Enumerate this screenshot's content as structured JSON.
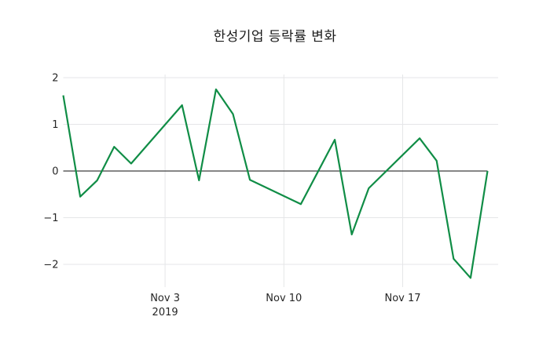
{
  "chart_data": {
    "type": "line",
    "title": "한성기업 등락률 변화",
    "xlabel": "",
    "ylabel": "",
    "x": [
      "2019-10-28",
      "2019-10-29",
      "2019-10-30",
      "2019-10-31",
      "2019-11-01",
      "2019-11-04",
      "2019-11-05",
      "2019-11-06",
      "2019-11-07",
      "2019-11-08",
      "2019-11-11",
      "2019-11-12",
      "2019-11-13",
      "2019-11-14",
      "2019-11-15",
      "2019-11-18",
      "2019-11-19",
      "2019-11-20",
      "2019-11-21",
      "2019-11-22"
    ],
    "day_offsets": [
      0,
      1,
      2,
      3,
      4,
      7,
      8,
      9,
      10,
      11,
      14,
      15,
      16,
      17,
      18,
      21,
      22,
      23,
      24,
      25
    ],
    "values": [
      1.62,
      -0.55,
      -0.2,
      0.52,
      0.16,
      1.41,
      -0.2,
      1.75,
      1.22,
      -0.19,
      -0.71,
      -0.02,
      0.67,
      -1.36,
      -0.37,
      0.7,
      0.22,
      -1.88,
      -2.29,
      0.0
    ],
    "series_name": "등락률",
    "line_color": "#108d46",
    "zero_line_color": "#3f3f3f",
    "grid": true,
    "grid_color": "#e5e6e8",
    "legend": "none",
    "ylim": [
      -2.5,
      2.1
    ],
    "yticks": [
      {
        "v": 2,
        "label": "2"
      },
      {
        "v": 1,
        "label": "1"
      },
      {
        "v": 0,
        "label": "0"
      },
      {
        "v": -1,
        "label": "−1"
      },
      {
        "v": -2,
        "label": "−2"
      }
    ],
    "xticks": [
      {
        "day": 6,
        "label": "Nov 3",
        "sub": "2019"
      },
      {
        "day": 13,
        "label": "Nov 10",
        "sub": ""
      },
      {
        "day": 20,
        "label": "Nov 17",
        "sub": ""
      }
    ]
  }
}
